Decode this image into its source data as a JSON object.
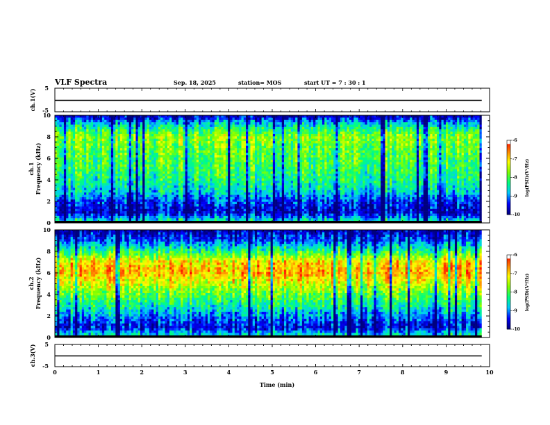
{
  "header": {
    "title": "VLF Spectra",
    "date": "Sep. 18, 2025",
    "station": "station= MOS",
    "start_ut": "start  UT  =   7 : 30 : 1"
  },
  "colors": {
    "scale": [
      "#000080",
      "#0000ff",
      "#00c8ff",
      "#00ff80",
      "#80ff00",
      "#ffff00",
      "#ff8000",
      "#ff0000",
      "#ffffff"
    ]
  },
  "chart_data": [
    {
      "type": "line",
      "name": "ch1-waveform",
      "ylabel": "ch.1(V)",
      "ylim": [
        -5,
        5
      ],
      "yticks": [
        "5",
        "-5"
      ],
      "x": [
        0,
        10
      ],
      "y": [
        0,
        0
      ]
    },
    {
      "type": "heatmap",
      "name": "ch1-spectrogram",
      "ylabel_line1": "ch.1",
      "ylabel_line2": "Frequency (kHz)",
      "ylim": [
        0,
        10
      ],
      "yticks": [
        "0",
        "2",
        "4",
        "6",
        "8",
        "10"
      ],
      "colorbar_label": "log(PSD)(V²/Hz)",
      "colorbar_ticks": [
        "-6",
        "-7",
        "-8",
        "-9",
        "-10"
      ],
      "colorbar_range": [
        -10,
        -6
      ],
      "freq_profile_khz": [
        0,
        1,
        2,
        3,
        4,
        5,
        6,
        7,
        8,
        9,
        10
      ],
      "freq_profile_level": [
        -8.2,
        -9.7,
        -9.3,
        -8.6,
        -8.3,
        -8.1,
        -8.0,
        -7.9,
        -7.6,
        -8.5,
        -9.8
      ]
    },
    {
      "type": "heatmap",
      "name": "ch2-spectrogram",
      "ylabel_line1": "ch.2",
      "ylabel_line2": "Frequency (kHz)",
      "ylim": [
        0,
        10
      ],
      "yticks": [
        "0",
        "2",
        "4",
        "6",
        "8",
        "10"
      ],
      "colorbar_label": "log(PSD)(V²/Hz)",
      "colorbar_ticks": [
        "-6",
        "-7",
        "-8",
        "-9",
        "-10"
      ],
      "colorbar_range": [
        -10,
        -6
      ],
      "freq_profile_khz": [
        0,
        1,
        2,
        3,
        4,
        5,
        6,
        7,
        8,
        9,
        10
      ],
      "freq_profile_level": [
        -8.3,
        -9.6,
        -9.0,
        -8.4,
        -7.9,
        -7.3,
        -6.8,
        -7.0,
        -8.2,
        -9.2,
        -9.8
      ]
    },
    {
      "type": "line",
      "name": "ch3-waveform",
      "ylabel": "ch.3(V)",
      "ylim": [
        -5,
        5
      ],
      "yticks": [
        "5",
        "-5"
      ],
      "x": [
        0,
        10
      ],
      "y": [
        0,
        0
      ]
    }
  ],
  "xaxis": {
    "label": "Time (min)",
    "xlim": [
      0,
      10
    ],
    "ticks": [
      "0",
      "1",
      "2",
      "3",
      "4",
      "5",
      "6",
      "7",
      "8",
      "9",
      "10"
    ]
  }
}
